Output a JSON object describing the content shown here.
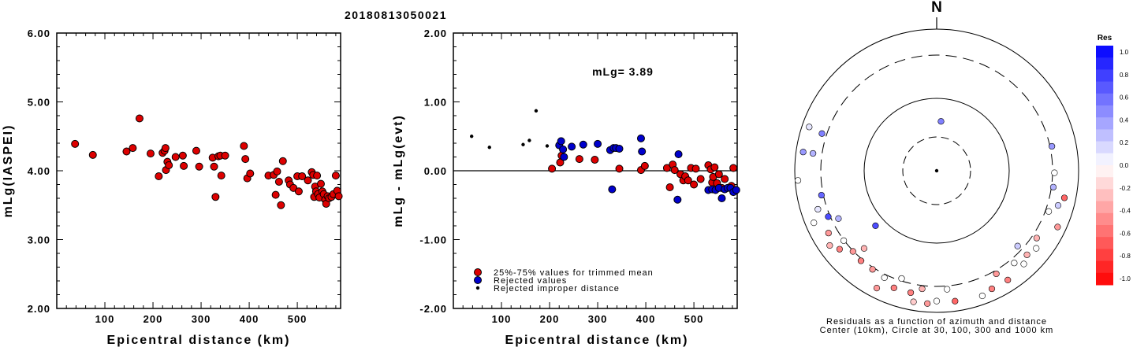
{
  "title": "20180813050021",
  "chart_data": [
    {
      "type": "scatter",
      "xlabel": "Epicentral distance (km)",
      "ylabel": "mLg(IASPEI)",
      "xlim": [
        0,
        590
      ],
      "ylim": [
        2.0,
        6.0
      ],
      "xticks": [
        "100",
        "200",
        "300",
        "400",
        "500"
      ],
      "yticks": [
        "2.00",
        "3.00",
        "4.00",
        "5.00",
        "6.00"
      ],
      "series": [
        {
          "color": "#dd0000",
          "points": [
            [
              38,
              4.39
            ],
            [
              75,
              4.23
            ],
            [
              145,
              4.28
            ],
            [
              158,
              4.33
            ],
            [
              172,
              4.76
            ],
            [
              195,
              4.25
            ],
            [
              212,
              3.92
            ],
            [
              220,
              4.26
            ],
            [
              224,
              4.29
            ],
            [
              226,
              4.33
            ],
            [
              227,
              4.01
            ],
            [
              230,
              4.13
            ],
            [
              233,
              4.08
            ],
            [
              247,
              4.2
            ],
            [
              262,
              4.22
            ],
            [
              264,
              4.07
            ],
            [
              290,
              4.29
            ],
            [
              296,
              4.06
            ],
            [
              324,
              4.19
            ],
            [
              327,
              4.06
            ],
            [
              330,
              3.62
            ],
            [
              336,
              4.21
            ],
            [
              340,
              4.22
            ],
            [
              342,
              3.93
            ],
            [
              350,
              4.22
            ],
            [
              389,
              4.36
            ],
            [
              392,
              4.17
            ],
            [
              396,
              3.89
            ],
            [
              402,
              3.96
            ],
            [
              440,
              3.93
            ],
            [
              451,
              3.94
            ],
            [
              455,
              3.65
            ],
            [
              458,
              3.99
            ],
            [
              462,
              3.84
            ],
            [
              466,
              3.5
            ],
            [
              470,
              4.14
            ],
            [
              482,
              3.86
            ],
            [
              485,
              3.8
            ],
            [
              492,
              3.75
            ],
            [
              500,
              3.92
            ],
            [
              503,
              3.7
            ],
            [
              510,
              3.92
            ],
            [
              522,
              3.86
            ],
            [
              530,
              3.98
            ],
            [
              533,
              3.94
            ],
            [
              535,
              3.62
            ],
            [
              537,
              3.77
            ],
            [
              539,
              3.7
            ],
            [
              541,
              3.93
            ],
            [
              543,
              3.66
            ],
            [
              546,
              3.61
            ],
            [
              549,
              3.81
            ],
            [
              552,
              3.7
            ],
            [
              555,
              3.66
            ],
            [
              558,
              3.58
            ],
            [
              560,
              3.52
            ],
            [
              563,
              3.63
            ],
            [
              566,
              3.6
            ],
            [
              571,
              3.62
            ],
            [
              575,
              3.66
            ],
            [
              580,
              3.93
            ],
            [
              583,
              3.71
            ],
            [
              586,
              3.63
            ]
          ]
        }
      ]
    },
    {
      "type": "scatter",
      "xlabel": "Epicentral distance (km)",
      "ylabel": "mLg - mLg(evt)",
      "annotation": "mLg= 3.89",
      "xlim": [
        0,
        590
      ],
      "ylim": [
        -2.0,
        2.0
      ],
      "xticks": [
        "100",
        "200",
        "300",
        "400",
        "500"
      ],
      "yticks": [
        "-2.00",
        "-1.00",
        "0.00",
        "1.00",
        "2.00"
      ],
      "series": [
        {
          "name": "25%-75% values for trimmed mean",
          "color": "#dd0000",
          "points": [
            [
              205,
              0.03
            ],
            [
              222,
              0.12
            ],
            [
              225,
              0.22
            ],
            [
              262,
              0.17
            ],
            [
              294,
              0.16
            ],
            [
              345,
              0.03
            ],
            [
              390,
              0.01
            ],
            [
              398,
              0.07
            ],
            [
              444,
              0.04
            ],
            [
              450,
              -0.24
            ],
            [
              456,
              0.09
            ],
            [
              460,
              0.01
            ],
            [
              472,
              -0.05
            ],
            [
              478,
              -0.14
            ],
            [
              482,
              -0.08
            ],
            [
              488,
              -0.14
            ],
            [
              494,
              0.04
            ],
            [
              500,
              -0.2
            ],
            [
              504,
              0.03
            ],
            [
              514,
              -0.12
            ],
            [
              530,
              0.08
            ],
            [
              535,
              0.02
            ],
            [
              538,
              -0.17
            ],
            [
              540,
              -0.09
            ],
            [
              543,
              0.05
            ],
            [
              548,
              -0.18
            ],
            [
              552,
              -0.05
            ],
            [
              558,
              -0.25
            ],
            [
              564,
              -0.12
            ],
            [
              578,
              -0.22
            ],
            [
              582,
              0.04
            ]
          ]
        },
        {
          "name": "Rejected values",
          "color": "#0000cc",
          "points": [
            [
              220,
              0.37
            ],
            [
              224,
              0.43
            ],
            [
              228,
              0.31
            ],
            [
              230,
              0.2
            ],
            [
              246,
              0.35
            ],
            [
              270,
              0.38
            ],
            [
              300,
              0.39
            ],
            [
              326,
              0.3
            ],
            [
              330,
              -0.27
            ],
            [
              333,
              0.33
            ],
            [
              338,
              0.33
            ],
            [
              345,
              0.32
            ],
            [
              390,
              0.47
            ],
            [
              392,
              0.28
            ],
            [
              466,
              -0.42
            ],
            [
              468,
              0.24
            ],
            [
              530,
              -0.28
            ],
            [
              538,
              -0.27
            ],
            [
              545,
              -0.28
            ],
            [
              552,
              -0.25
            ],
            [
              558,
              -0.4
            ],
            [
              564,
              -0.27
            ],
            [
              570,
              -0.25
            ],
            [
              576,
              -0.25
            ],
            [
              582,
              -0.31
            ],
            [
              588,
              -0.28
            ]
          ]
        },
        {
          "name": "Rejected improper distance",
          "color": "#000000",
          "points": [
            [
              38,
              0.5
            ],
            [
              75,
              0.34
            ],
            [
              145,
              0.38
            ],
            [
              158,
              0.44
            ],
            [
              172,
              0.87
            ],
            [
              195,
              0.36
            ]
          ]
        }
      ]
    },
    {
      "type": "polar-scatter",
      "north_label": "N",
      "caption": [
        "Residuals as a function of azimuth and distance",
        "Center (10km), Circle at 30, 100, 300 and 1000 km"
      ],
      "colorbar": {
        "title": "Res",
        "ticks": [
          "1.0",
          "0.8",
          "0.6",
          "0.4",
          "0.2",
          "0.0",
          "-0.2",
          "-0.4",
          "-0.6",
          "-0.8",
          "-1.0"
        ],
        "positive_color": "#0000ff",
        "negative_color": "#ff0000"
      },
      "points": [
        {
          "az": 5,
          "ring": 0.35,
          "res": 0.5
        },
        {
          "az": 228,
          "ring": 0.58,
          "res": 0.7
        },
        {
          "az": 258,
          "ring": 0.83,
          "res": 0.6
        },
        {
          "az": 247,
          "ring": 0.83,
          "res": 0.7
        },
        {
          "az": 278,
          "ring": 0.95,
          "res": 0.4
        },
        {
          "az": 278,
          "ring": 0.88,
          "res": 0.3
        },
        {
          "az": 288,
          "ring": 0.85,
          "res": 0.5
        },
        {
          "az": 289,
          "ring": 0.95,
          "res": 0.1
        },
        {
          "az": 266,
          "ring": 0.98,
          "res": 0.0
        },
        {
          "az": 247,
          "ring": 0.94,
          "res": 0.0
        },
        {
          "az": 252,
          "ring": 0.88,
          "res": 0.1
        },
        {
          "az": 235,
          "ring": 0.92,
          "res": -0.3
        },
        {
          "az": 244,
          "ring": 0.77,
          "res": 0.3
        },
        {
          "az": 240,
          "ring": 0.88,
          "res": -0.4
        },
        {
          "az": 231,
          "ring": 0.88,
          "res": -0.5
        },
        {
          "az": 233,
          "ring": 0.82,
          "res": 0.0
        },
        {
          "az": 226,
          "ring": 0.82,
          "res": -0.4
        },
        {
          "az": 223,
          "ring": 0.75,
          "res": -0.3
        },
        {
          "az": 220,
          "ring": 0.83,
          "res": -0.5
        },
        {
          "az": 213,
          "ring": 0.83,
          "res": -0.4
        },
        {
          "az": 206,
          "ring": 0.84,
          "res": 0.0
        },
        {
          "az": 200,
          "ring": 0.88,
          "res": -0.5
        },
        {
          "az": 207,
          "ring": 0.93,
          "res": -0.4
        },
        {
          "az": 198,
          "ring": 0.8,
          "res": 0.0
        },
        {
          "az": 192,
          "ring": 0.88,
          "res": -0.5
        },
        {
          "az": 187,
          "ring": 0.84,
          "res": -0.3
        },
        {
          "az": 190,
          "ring": 0.94,
          "res": -0.2
        },
        {
          "az": 184,
          "ring": 0.94,
          "res": -0.4
        },
        {
          "az": 180,
          "ring": 0.92,
          "res": 0.0
        },
        {
          "az": 175,
          "ring": 0.84,
          "res": 0.0
        },
        {
          "az": 172,
          "ring": 0.93,
          "res": -0.6
        },
        {
          "az": 160,
          "ring": 0.94,
          "res": 0.0
        },
        {
          "az": 155,
          "ring": 0.92,
          "res": -0.5
        },
        {
          "az": 150,
          "ring": 0.84,
          "res": -0.4
        },
        {
          "az": 147,
          "ring": 0.92,
          "res": -0.5
        },
        {
          "az": 140,
          "ring": 0.85,
          "res": 0.0
        },
        {
          "az": 137,
          "ring": 0.9,
          "res": 0.0
        },
        {
          "az": 133,
          "ring": 0.87,
          "res": -0.3
        },
        {
          "az": 133,
          "ring": 0.78,
          "res": 0.2
        },
        {
          "az": 128,
          "ring": 0.89,
          "res": 0.0
        },
        {
          "az": 124,
          "ring": 0.85,
          "res": -0.3
        },
        {
          "az": 115,
          "ring": 0.94,
          "res": -0.4
        },
        {
          "az": 110,
          "ring": 0.84,
          "res": 0.0
        },
        {
          "az": 106,
          "ring": 0.89,
          "res": 0.2
        },
        {
          "az": 102,
          "ring": 0.92,
          "res": -0.6
        },
        {
          "az": 98,
          "ring": 0.83,
          "res": 0.3
        },
        {
          "az": 91,
          "ring": 0.83,
          "res": 0.0
        },
        {
          "az": 78,
          "ring": 0.83,
          "res": 0.4
        }
      ]
    }
  ]
}
